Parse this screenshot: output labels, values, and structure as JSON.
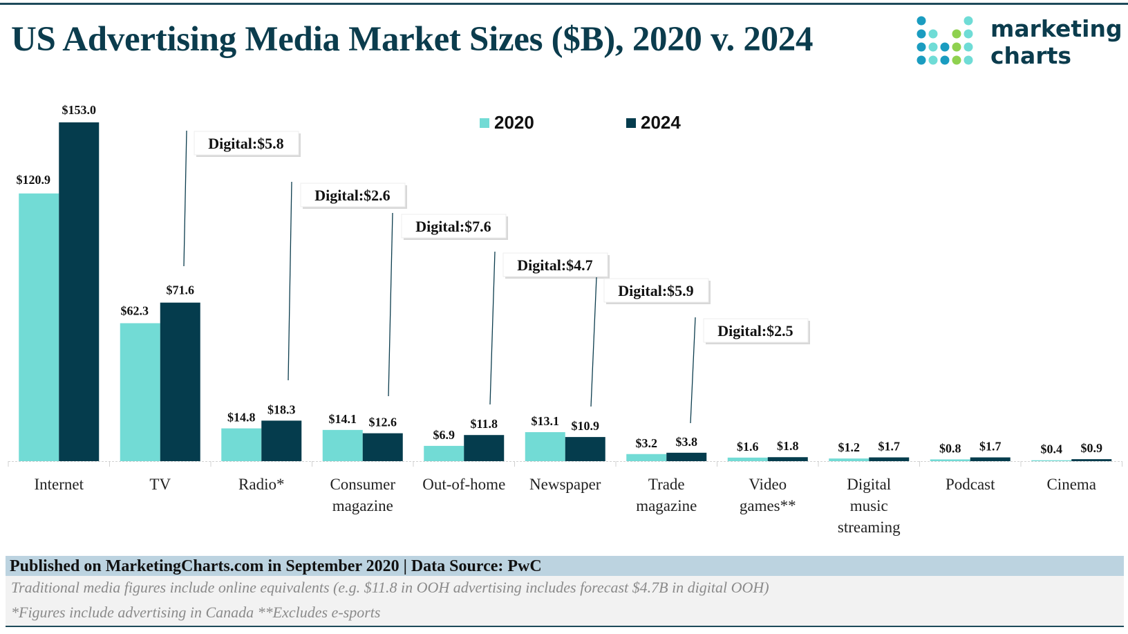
{
  "title": "US Advertising Media Market Sizes ($B), 2020 v. 2024",
  "logo": {
    "line1": "marketing",
    "line2": "charts"
  },
  "colors": {
    "y2020": "#72dbd5",
    "y2024": "#053c4d",
    "title": "#0b3c4d"
  },
  "chart_data": {
    "type": "bar",
    "title": "US Advertising Media Market Sizes ($B), 2020 v. 2024",
    "categories": [
      "Internet",
      "TV",
      "Radio*",
      "Consumer magazine",
      "Out-of-home",
      "Newspaper",
      "Trade magazine",
      "Video games**",
      "Digital music streaming",
      "Podcast",
      "Cinema"
    ],
    "category_lines": [
      [
        "Internet"
      ],
      [
        "TV"
      ],
      [
        "Radio*"
      ],
      [
        "Consumer",
        "magazine"
      ],
      [
        "Out-of-home"
      ],
      [
        "Newspaper"
      ],
      [
        "Trade",
        "magazine"
      ],
      [
        "Video",
        "games**"
      ],
      [
        "Digital",
        "music",
        "streaming"
      ],
      [
        "Podcast"
      ],
      [
        "Cinema"
      ]
    ],
    "series": [
      {
        "name": "2020",
        "values": [
          120.9,
          62.3,
          14.8,
          14.1,
          6.9,
          13.1,
          3.2,
          1.6,
          1.2,
          0.8,
          0.4
        ],
        "labels": [
          "$120.9",
          "$62.3",
          "$14.8",
          "$14.1",
          "$6.9",
          "$13.1",
          "$3.2",
          "$1.6",
          "$1.2",
          "$0.8",
          "$0.4"
        ]
      },
      {
        "name": "2024",
        "values": [
          153.0,
          71.6,
          18.3,
          12.6,
          11.8,
          10.9,
          3.8,
          1.8,
          1.7,
          1.7,
          0.9
        ],
        "labels": [
          "$153.0",
          "$71.6",
          "$18.3",
          "$12.6",
          "$11.8",
          "$10.9",
          "$3.8",
          "$1.8",
          "$1.7",
          "$1.7",
          "$0.9"
        ]
      }
    ],
    "annotations": [
      {
        "category": "TV",
        "text": "Digital:$5.8"
      },
      {
        "category": "Radio*",
        "text": "Digital:$2.6"
      },
      {
        "category": "Consumer magazine",
        "text": "Digital:$7.6"
      },
      {
        "category": "Out-of-home",
        "text": "Digital:$4.7"
      },
      {
        "category": "Newspaper",
        "text": "Digital:$5.9"
      },
      {
        "category": "Trade magazine",
        "text": "Digital:$2.5"
      }
    ],
    "ylim": [
      0,
      153
    ],
    "grid": false,
    "legend": "top-center"
  },
  "footer": {
    "source": "Published on MarketingCharts.com in September 2020 | Data Source: PwC",
    "note1": "Traditional media figures include online equivalents (e.g. $11.8 in OOH advertising includes forecast $4.7B in digital OOH)",
    "note2": "*Figures include advertising in Canada **Excludes e-sports"
  }
}
